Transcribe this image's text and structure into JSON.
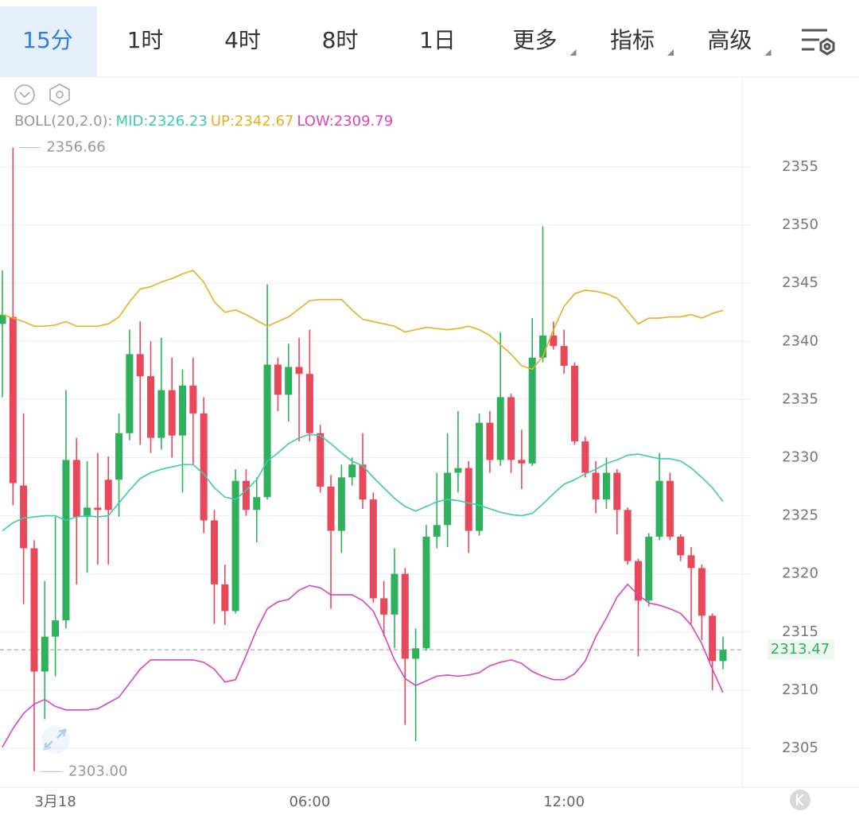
{
  "tabs": [
    {
      "text": "15分"
    },
    {
      "text": "1时"
    },
    {
      "text": "4时"
    },
    {
      "text": "8时"
    },
    {
      "text": "1日"
    },
    {
      "text": "更多",
      "dropdown": true
    },
    {
      "text": "指标",
      "dropdown": true
    },
    {
      "text": "高级",
      "dropdown": true
    }
  ],
  "active_tab": 0,
  "chart_data": {
    "type": "candlestick",
    "indicator": "BOLL(20,2.0):",
    "categories": [
      null,
      null,
      null,
      null,
      null,
      "3月18",
      null,
      null,
      null,
      null,
      null,
      null,
      null,
      null,
      null,
      null,
      null,
      null,
      null,
      null,
      null,
      null,
      null,
      null,
      null,
      null,
      null,
      null,
      null,
      "06:00",
      null,
      null,
      null,
      null,
      null,
      null,
      null,
      null,
      null,
      null,
      null,
      null,
      null,
      null,
      null,
      null,
      null,
      null,
      null,
      null,
      null,
      null,
      null,
      "12:00",
      null,
      null,
      null,
      null,
      null,
      null,
      null,
      null,
      null,
      null,
      null,
      null,
      null,
      null,
      null
    ],
    "open": [
      2341.5,
      2342.1,
      2327.6,
      2322.2,
      2311.6,
      2314.6,
      2316.0,
      2329.8,
      2324.9,
      2325.7,
      2328.1,
      2328.1,
      2332.1,
      2338.9,
      2337.0,
      2331.7,
      2335.8,
      2331.9,
      2336.2,
      2333.8,
      2324.6,
      2319.1,
      2316.8,
      2328.0,
      2325.5,
      2326.6,
      2338.0,
      2335.4,
      2337.8,
      2337.2,
      2332.1,
      2327.5,
      2323.7,
      2328.3,
      2329.4,
      2326.4,
      2317.9,
      2316.5,
      2320.0,
      2312.7,
      2313.6,
      2323.2,
      2324.2,
      2328.7,
      2329.1,
      2323.7,
      2333.0,
      2329.8,
      2335.2,
      2329.8,
      2329.5,
      2338.6,
      2340.5,
      2339.6,
      2337.9,
      2331.4,
      2328.7,
      2326.4,
      2328.7,
      2325.5,
      2321.1,
      2317.7,
      2323.2,
      2328.0,
      2323.2,
      2321.6,
      2320.5,
      2316.4,
      2312.5
    ],
    "high": [
      2346.1,
      2356.66,
      2333.8,
      2322.9,
      2319.4,
      2324.9,
      2335.8,
      2331.7,
      2329.7,
      2330.4,
      2330.1,
      2333.8,
      2341.0,
      2341.7,
      2340.0,
      2340.3,
      2338.6,
      2337.6,
      2338.6,
      2335.2,
      2325.5,
      2320.8,
      2329.0,
      2329.0,
      2328.3,
      2344.9,
      2338.6,
      2339.8,
      2340.3,
      2341.0,
      2332.8,
      2328.5,
      2329.4,
      2330.0,
      2332.1,
      2327.0,
      2319.4,
      2322.2,
      2320.5,
      2315.3,
      2324.2,
      2328.7,
      2332.1,
      2334.0,
      2329.7,
      2333.8,
      2334.0,
      2340.8,
      2335.5,
      2332.4,
      2342.0,
      2349.9,
      2341.7,
      2341.0,
      2338.2,
      2331.8,
      2329.7,
      2330.0,
      2329.0,
      2325.7,
      2321.3,
      2323.5,
      2330.4,
      2328.7,
      2323.4,
      2322.3,
      2320.8,
      2316.6,
      2314.6
    ],
    "low": [
      2335.2,
      2325.9,
      2317.4,
      2303.0,
      2307.5,
      2311.2,
      2315.3,
      2319.1,
      2320.1,
      2320.8,
      2320.8,
      2324.9,
      2331.5,
      2331.1,
      2330.4,
      2330.7,
      2330.0,
      2327.0,
      2329.4,
      2323.5,
      2315.7,
      2315.6,
      2316.6,
      2325.0,
      2322.7,
      2326.4,
      2334.0,
      2333.1,
      2331.4,
      2331.4,
      2327.0,
      2317.0,
      2321.8,
      2327.6,
      2325.6,
      2317.5,
      2314.6,
      2313.6,
      2307.0,
      2305.6,
      2313.4,
      2322.2,
      2322.3,
      2327.0,
      2321.8,
      2323.3,
      2328.7,
      2329.3,
      2328.7,
      2327.3,
      2329.3,
      2338.2,
      2339.3,
      2337.2,
      2331.1,
      2328.3,
      2325.2,
      2325.6,
      2323.4,
      2320.8,
      2312.9,
      2317.2,
      2322.9,
      2322.9,
      2321.1,
      2315.7,
      2314.3,
      2310.0,
      2311.8
    ],
    "close": [
      2342.3,
      2327.8,
      2322.2,
      2311.6,
      2314.6,
      2316.0,
      2329.8,
      2324.9,
      2325.7,
      2325.5,
      2325.5,
      2332.1,
      2338.9,
      2337.0,
      2331.7,
      2335.8,
      2331.9,
      2336.2,
      2333.8,
      2324.6,
      2319.1,
      2316.8,
      2328.0,
      2325.5,
      2326.6,
      2338.0,
      2335.4,
      2337.8,
      2337.2,
      2332.1,
      2327.5,
      2323.7,
      2328.3,
      2329.4,
      2326.4,
      2317.9,
      2316.5,
      2320.0,
      2312.7,
      2313.6,
      2323.2,
      2324.2,
      2328.7,
      2329.1,
      2323.7,
      2333.0,
      2329.8,
      2335.2,
      2329.8,
      2329.5,
      2338.6,
      2340.5,
      2339.6,
      2337.9,
      2331.4,
      2328.7,
      2326.4,
      2328.7,
      2325.5,
      2321.1,
      2317.7,
      2323.2,
      2328.0,
      2323.2,
      2321.6,
      2320.5,
      2316.4,
      2312.5,
      2313.47
    ],
    "up_color": "#2eb05c",
    "down_color": "#e8485a",
    "series": [
      {
        "label": "MID:2326.23",
        "color": "#3ccab0",
        "values": [
          2323.7,
          2324.4,
          2324.8,
          2324.9,
          2325.0,
          2325.0,
          2324.6,
          2324.9,
          2325.0,
          2324.9,
          2325.0,
          2326.1,
          2327.2,
          2328.2,
          2328.7,
          2329.0,
          2329.2,
          2329.4,
          2329.4,
          2328.6,
          2327.4,
          2326.6,
          2326.4,
          2327.2,
          2328.1,
          2329.7,
          2330.4,
          2331.2,
          2331.7,
          2332.0,
          2331.9,
          2331.2,
          2330.4,
          2329.7,
          2329.3,
          2328.3,
          2327.4,
          2326.5,
          2325.8,
          2325.4,
          2325.8,
          2326.2,
          2326.4,
          2326.3,
          2326.1,
          2325.9,
          2325.6,
          2325.3,
          2325.1,
          2325.0,
          2325.2,
          2326.0,
          2326.9,
          2327.7,
          2328.1,
          2328.6,
          2329.0,
          2329.5,
          2329.8,
          2330.2,
          2330.3,
          2330.1,
          2329.9,
          2329.9,
          2329.7,
          2329.1,
          2328.3,
          2327.4,
          2326.23
        ]
      },
      {
        "label": "UP:2342.67",
        "color": "#e8b020",
        "values": [
          2342.3,
          2342.0,
          2341.7,
          2341.3,
          2341.3,
          2341.4,
          2341.7,
          2341.3,
          2341.3,
          2341.3,
          2341.5,
          2342.1,
          2343.4,
          2344.5,
          2344.7,
          2345.1,
          2345.4,
          2345.8,
          2346.1,
          2345.1,
          2343.4,
          2342.5,
          2342.7,
          2342.3,
          2341.8,
          2341.3,
          2341.7,
          2342.1,
          2342.8,
          2343.5,
          2343.6,
          2343.6,
          2343.6,
          2342.7,
          2341.9,
          2341.7,
          2341.5,
          2341.3,
          2340.8,
          2341.0,
          2341.2,
          2341.1,
          2341.0,
          2341.1,
          2341.3,
          2341.0,
          2340.5,
          2339.7,
          2338.9,
          2337.9,
          2337.6,
          2338.7,
          2341.0,
          2343.0,
          2344.1,
          2344.4,
          2344.3,
          2344.1,
          2343.7,
          2342.6,
          2341.5,
          2342.0,
          2342.0,
          2342.1,
          2342.1,
          2342.3,
          2342.0,
          2342.4,
          2342.67
        ]
      },
      {
        "label": "LOW:2309.79",
        "color": "#d845c0",
        "values": [
          2305.1,
          2306.7,
          2308.0,
          2308.8,
          2309.2,
          2308.6,
          2308.3,
          2308.3,
          2308.3,
          2308.4,
          2308.9,
          2309.4,
          2310.6,
          2311.8,
          2312.6,
          2312.6,
          2312.6,
          2312.6,
          2312.6,
          2312.4,
          2311.8,
          2310.7,
          2310.9,
          2313.0,
          2315.2,
          2317.0,
          2317.6,
          2317.8,
          2318.6,
          2319.0,
          2318.8,
          2318.2,
          2318.2,
          2318.2,
          2317.7,
          2316.8,
          2314.8,
          2312.6,
          2311.0,
          2310.4,
          2310.8,
          2311.2,
          2311.3,
          2311.2,
          2311.3,
          2311.5,
          2312.1,
          2312.4,
          2312.6,
          2312.3,
          2311.6,
          2311.2,
          2310.9,
          2310.9,
          2311.4,
          2312.5,
          2314.6,
          2316.2,
          2318.0,
          2319.1,
          2318.2,
          2317.5,
          2317.3,
          2317.0,
          2316.6,
          2315.6,
          2314.0,
          2311.8,
          2309.79
        ]
      }
    ],
    "max_price": 2356.66,
    "min_price": {
      "value": 2303,
      "label": "2303.00"
    },
    "last_price": 2313.47,
    "ylim": [
      2301.65,
      2362.52
    ],
    "yticks": [
      2305,
      2310,
      2315,
      2320,
      2325,
      2330,
      2335,
      2340,
      2345,
      2350,
      2355
    ],
    "grid": true
  }
}
